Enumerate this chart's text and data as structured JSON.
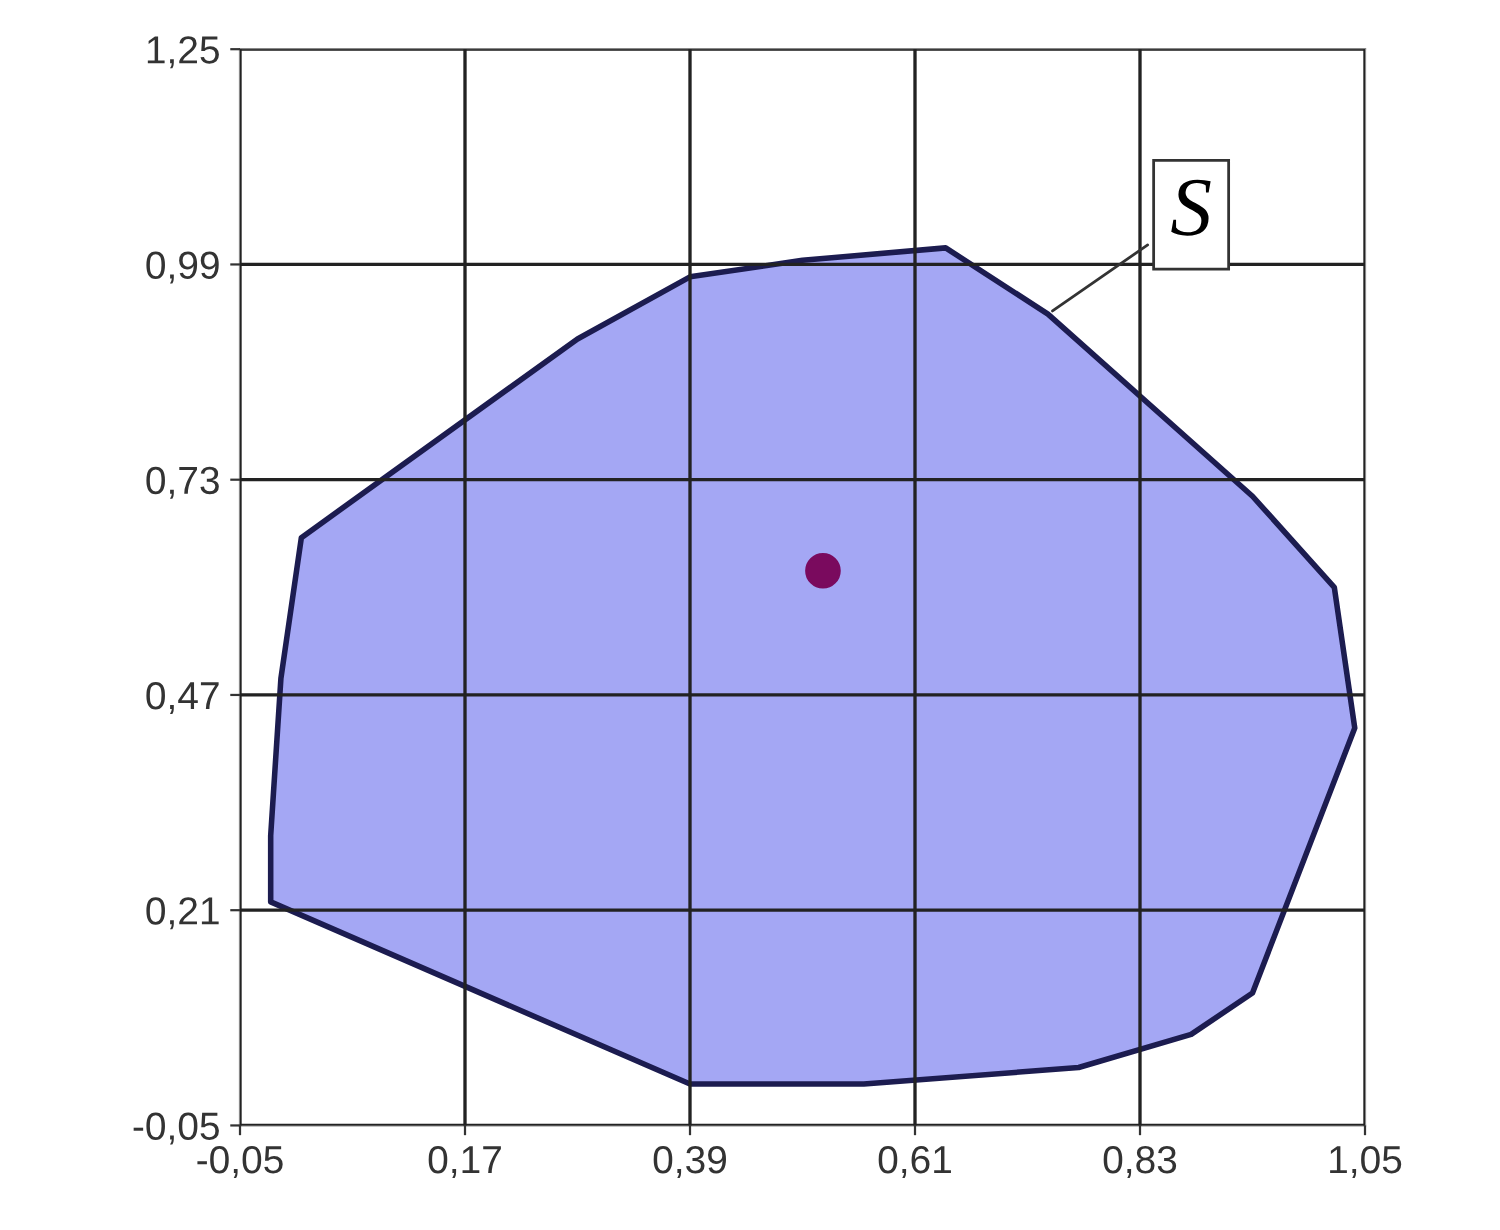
{
  "chart_data": {
    "type": "area",
    "series": [
      {
        "color": "#a4a7f4",
        "x": [
          0.01,
          -0.01,
          -0.02,
          -0.02,
          0.39,
          0.56,
          0.77,
          0.88,
          0.94,
          1.04,
          1.02,
          0.94,
          0.74,
          0.64,
          0.5,
          0.39,
          0.28,
          0.01
        ],
        "values": [
          0.66,
          0.49,
          0.3,
          0.22,
          0.0,
          0.0,
          0.02,
          0.06,
          0.11,
          0.43,
          0.6,
          0.71,
          0.93,
          1.01,
          0.995,
          0.975,
          0.9,
          0.66
        ]
      },
      {
        "type": "scatter",
        "marker": "circle",
        "color": "#7a0a5e",
        "x": [
          0.52
        ],
        "values": [
          0.62
        ]
      }
    ],
    "annotations": [
      {
        "text": "S",
        "x": 0.74,
        "y": 0.93
      }
    ],
    "xlim": [
      -0.05,
      1.05
    ],
    "ylim": [
      -0.05,
      1.25
    ],
    "xticks": [
      {
        "value": -0.05,
        "label": "-0,05"
      },
      {
        "value": 0.17,
        "label": "0,17"
      },
      {
        "value": 0.39,
        "label": "0,39"
      },
      {
        "value": 0.61,
        "label": "0,61"
      },
      {
        "value": 0.83,
        "label": "0,83"
      },
      {
        "value": 1.05,
        "label": "1,05"
      }
    ],
    "yticks": [
      {
        "value": -0.05,
        "label": "-0,05"
      },
      {
        "value": 0.21,
        "label": "0,21"
      },
      {
        "value": 0.47,
        "label": "0,47"
      },
      {
        "value": 0.73,
        "label": "0,73"
      },
      {
        "value": 0.99,
        "label": "0,99"
      },
      {
        "value": 1.25,
        "label": "1,25"
      }
    ],
    "grid": true
  }
}
